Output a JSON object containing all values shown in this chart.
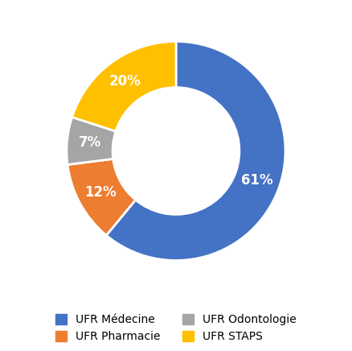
{
  "slices": [
    61,
    12,
    7,
    20
  ],
  "labels": [
    "61%",
    "12%",
    "7%",
    "20%"
  ],
  "colors": [
    "#4472C4",
    "#ED7D31",
    "#A5A5A5",
    "#FFC000"
  ],
  "legend_col1": [
    "UFR Médecine",
    "UFR Odontologie"
  ],
  "legend_col2": [
    "UFR Pharmacie",
    "UFR STAPS"
  ],
  "legend_colors_col1": [
    "#4472C4",
    "#A5A5A5"
  ],
  "legend_colors_col2": [
    "#ED7D31",
    "#FFC000"
  ],
  "startangle": 90,
  "donut_width": 0.42,
  "text_color": "#FFFFFF",
  "label_fontsize": 12,
  "legend_fontsize": 10,
  "background_color": "#FFFFFF"
}
